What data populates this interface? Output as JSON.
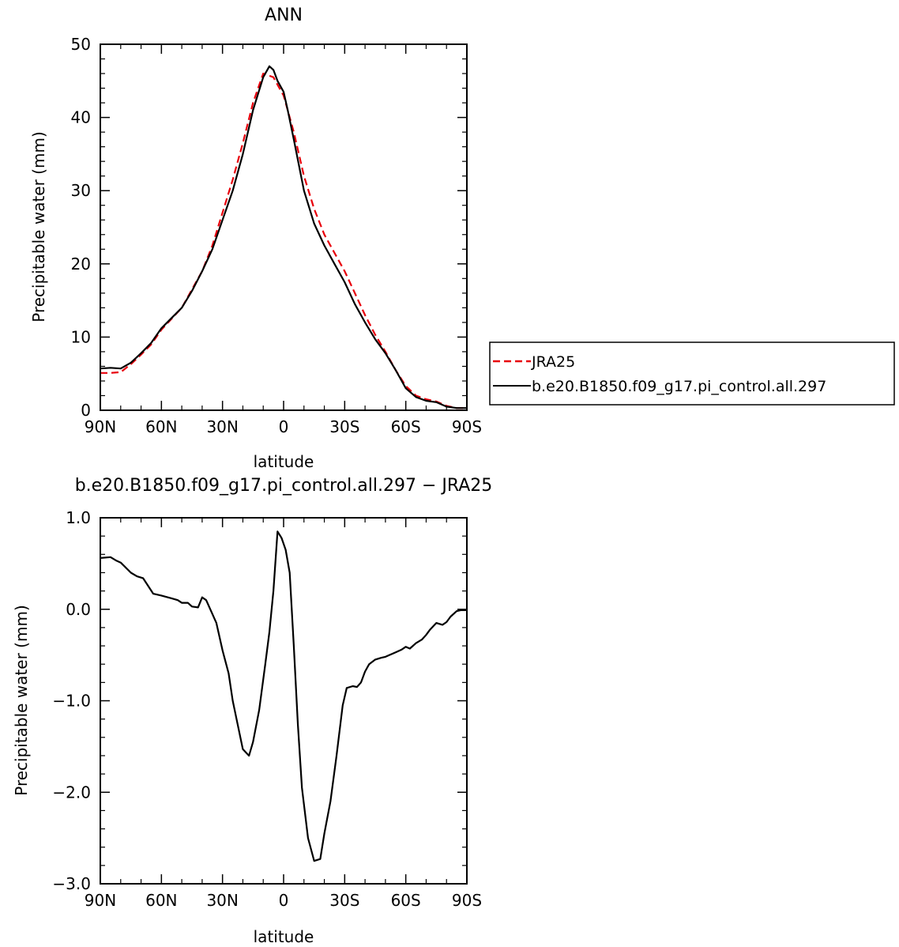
{
  "chart_data": [
    {
      "type": "line",
      "title": "ANN",
      "xlabel": "latitude",
      "ylabel": "Precipitable water (mm)",
      "xlim": [
        90,
        -90
      ],
      "ylim": [
        0,
        50
      ],
      "x_ticks": [
        {
          "value": 90,
          "label": "90N"
        },
        {
          "value": 60,
          "label": "60N"
        },
        {
          "value": 30,
          "label": "30N"
        },
        {
          "value": 0,
          "label": "0"
        },
        {
          "value": -30,
          "label": "30S"
        },
        {
          "value": -60,
          "label": "60S"
        },
        {
          "value": -90,
          "label": "90S"
        }
      ],
      "y_ticks": [
        {
          "value": 0,
          "label": "0"
        },
        {
          "value": 10,
          "label": "10"
        },
        {
          "value": 20,
          "label": "20"
        },
        {
          "value": 30,
          "label": "30"
        },
        {
          "value": 40,
          "label": "40"
        },
        {
          "value": 50,
          "label": "50"
        }
      ],
      "legend": {
        "position": "right",
        "entries": [
          "JRA25",
          "b.e20.B1850.f09_g17.pi_control.all.297"
        ]
      },
      "series": [
        {
          "name": "JRA25",
          "color": "#e8000b",
          "dash": "dashed",
          "x": [
            90,
            85,
            80,
            75,
            70,
            65,
            60,
            55,
            50,
            45,
            40,
            35,
            30,
            25,
            20,
            15,
            10,
            5,
            2,
            0,
            -5,
            -10,
            -15,
            -20,
            -25,
            -30,
            -35,
            -40,
            -45,
            -50,
            -55,
            -60,
            -65,
            -70,
            -75,
            -80,
            -85,
            -90
          ],
          "values": [
            5.1,
            5.1,
            5.2,
            6.3,
            7.6,
            9.0,
            11.0,
            12.5,
            14.0,
            16.5,
            19.0,
            22.5,
            27.0,
            31.5,
            36.5,
            42.0,
            46.0,
            45.5,
            44.0,
            43.0,
            38.0,
            32.0,
            27.5,
            24.0,
            21.5,
            19.0,
            16.0,
            13.0,
            10.3,
            8.0,
            5.5,
            3.3,
            2.0,
            1.5,
            1.2,
            0.6,
            0.3,
            0.3
          ]
        },
        {
          "name": "b.e20.B1850.f09_g17.pi_control.all.297",
          "color": "#000000",
          "dash": "solid",
          "x": [
            90,
            85,
            80,
            75,
            70,
            65,
            60,
            55,
            50,
            45,
            40,
            35,
            30,
            25,
            20,
            15,
            10,
            7,
            5,
            3,
            0,
            -2,
            -5,
            -10,
            -15,
            -20,
            -25,
            -30,
            -35,
            -40,
            -45,
            -50,
            -55,
            -60,
            -65,
            -70,
            -75,
            -80,
            -85,
            -90
          ],
          "values": [
            5.7,
            5.8,
            5.7,
            6.5,
            7.8,
            9.2,
            11.2,
            12.6,
            14.0,
            16.3,
            19.0,
            22.0,
            26.0,
            30.0,
            35.0,
            41.0,
            45.5,
            47.0,
            46.5,
            45.0,
            43.5,
            41.0,
            37.0,
            30.0,
            25.5,
            22.5,
            20.0,
            17.5,
            14.5,
            12.0,
            9.7,
            7.8,
            5.5,
            3.0,
            1.8,
            1.3,
            1.1,
            0.5,
            0.3,
            0.3
          ]
        }
      ]
    },
    {
      "type": "line",
      "title": "b.e20.B1850.f09_g17.pi_control.all.297 − JRA25",
      "xlabel": "latitude",
      "ylabel": "Precipitable water (mm)",
      "xlim": [
        90,
        -90
      ],
      "ylim": [
        -3.0,
        1.0
      ],
      "x_ticks": [
        {
          "value": 90,
          "label": "90N"
        },
        {
          "value": 60,
          "label": "60N"
        },
        {
          "value": 30,
          "label": "30N"
        },
        {
          "value": 0,
          "label": "0"
        },
        {
          "value": -30,
          "label": "30S"
        },
        {
          "value": -60,
          "label": "60S"
        },
        {
          "value": -90,
          "label": "90S"
        }
      ],
      "y_ticks": [
        {
          "value": 1.0,
          "label": "1.0"
        },
        {
          "value": 0.0,
          "label": "0.0"
        },
        {
          "value": -1.0,
          "label": "−1.0"
        },
        {
          "value": -2.0,
          "label": "−2.0"
        },
        {
          "value": -3.0,
          "label": "−3.0"
        }
      ],
      "series": [
        {
          "color": "#000000",
          "dash": "solid",
          "x": [
            90,
            85,
            82,
            80,
            75,
            72,
            69,
            64,
            60,
            55,
            52,
            50,
            47,
            45,
            42,
            40,
            38,
            36,
            33,
            30,
            27,
            25,
            20,
            17,
            15,
            12,
            9,
            7,
            5,
            3,
            1,
            -1,
            -3,
            -5,
            -7,
            -9,
            -12,
            -15,
            -18,
            -20,
            -23,
            -26,
            -29,
            -31,
            -34,
            -36,
            -38,
            -40,
            -42,
            -45,
            -48,
            -50,
            -52,
            -55,
            -58,
            -60,
            -62,
            -65,
            -68,
            -70,
            -72,
            -75,
            -78,
            -80,
            -82,
            -85,
            -87,
            -90
          ],
          "values": [
            0.56,
            0.57,
            0.53,
            0.51,
            0.4,
            0.36,
            0.34,
            0.17,
            0.15,
            0.12,
            0.1,
            0.07,
            0.07,
            0.03,
            0.02,
            0.13,
            0.1,
            0.0,
            -0.15,
            -0.45,
            -0.7,
            -1.0,
            -1.53,
            -1.6,
            -1.45,
            -1.1,
            -0.6,
            -0.25,
            0.2,
            0.85,
            0.78,
            0.65,
            0.4,
            -0.4,
            -1.25,
            -1.95,
            -2.5,
            -2.75,
            -2.73,
            -2.45,
            -2.1,
            -1.6,
            -1.05,
            -0.86,
            -0.84,
            -0.85,
            -0.8,
            -0.68,
            -0.6,
            -0.55,
            -0.53,
            -0.52,
            -0.5,
            -0.47,
            -0.44,
            -0.41,
            -0.43,
            -0.37,
            -0.33,
            -0.28,
            -0.22,
            -0.15,
            -0.17,
            -0.14,
            -0.08,
            -0.02,
            -0.01,
            -0.01
          ]
        }
      ]
    }
  ]
}
